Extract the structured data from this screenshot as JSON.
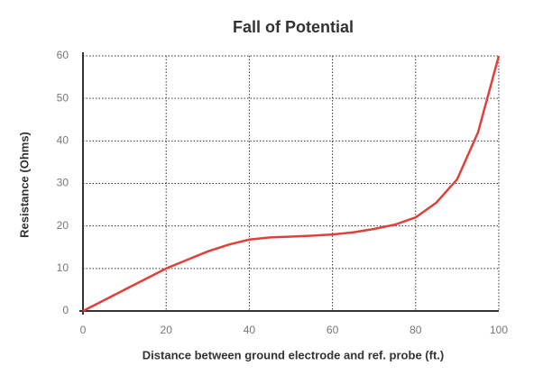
{
  "chart_data": {
    "type": "line",
    "title": "Fall of Potential",
    "x_label": "Distance between ground electrode and ref. probe (ft.)",
    "y_label": "Resistance (Ohms)",
    "x": [
      0,
      5,
      10,
      15,
      20,
      25,
      30,
      35,
      40,
      45,
      50,
      55,
      60,
      65,
      70,
      75,
      80,
      85,
      90,
      95,
      100
    ],
    "series": [
      {
        "name": "Resistance",
        "color": "#e0403a",
        "values": [
          0,
          2.5,
          5,
          7.5,
          10,
          12,
          14,
          15.6,
          16.8,
          17.3,
          17.5,
          17.7,
          18,
          18.5,
          19.3,
          20.3,
          22,
          25.5,
          31,
          42,
          60
        ]
      }
    ],
    "xlim": [
      0,
      100
    ],
    "xticks": [
      0,
      20,
      40,
      60,
      80,
      100
    ],
    "ylim": [
      0,
      60
    ],
    "yticks": [
      0,
      10,
      20,
      30,
      40,
      50,
      60
    ],
    "grid": true
  }
}
